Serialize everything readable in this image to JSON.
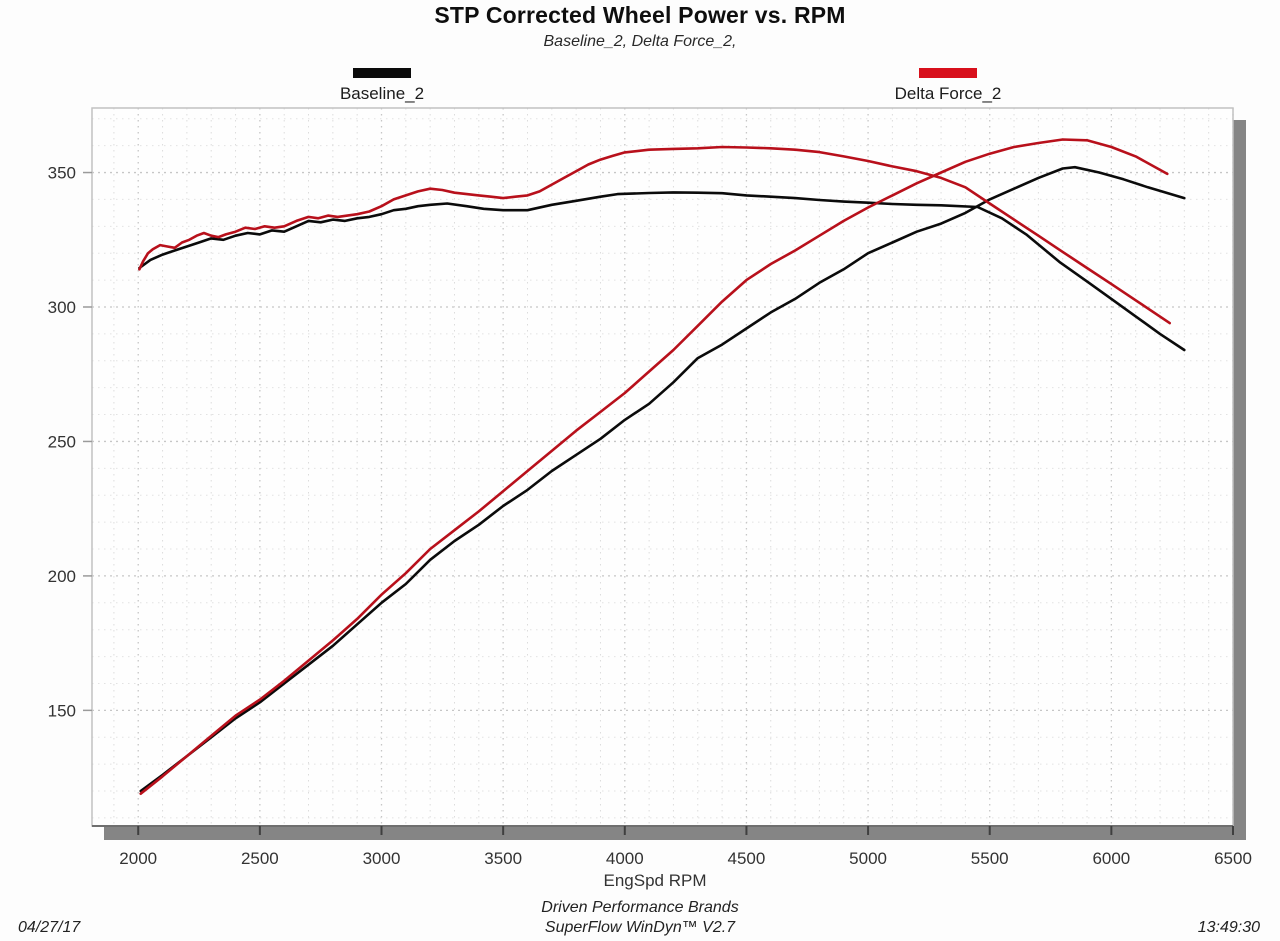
{
  "page": {
    "title": "STP Corrected Wheel Power vs. RPM",
    "subtitle": "Baseline_2, Delta Force_2,"
  },
  "legend": [
    {
      "label": "Baseline_2",
      "color": "#0b0b0b"
    },
    {
      "label": "Delta Force_2",
      "color": "#d8101c"
    }
  ],
  "footer": {
    "date": "04/27/17",
    "time": "13:49:30",
    "brand_line1": "Driven Performance Brands",
    "brand_line2": "SuperFlow WinDyn™ V2.7"
  },
  "chart_data": {
    "type": "line",
    "title": "STP Corrected Wheel Power vs. RPM",
    "subtitle": "Baseline_2, Delta Force_2,",
    "xlabel": "EngSpd RPM",
    "ylabel": "",
    "xlim": [
      1810,
      6500
    ],
    "ylim": [
      107,
      374
    ],
    "x_ticks": [
      2000,
      2500,
      3000,
      3500,
      4000,
      4500,
      5000,
      5500,
      6000,
      6500
    ],
    "y_ticks": [
      150,
      200,
      250,
      300,
      350
    ],
    "x_minor_step": 100,
    "y_minor_step": 10,
    "grid": "dotted",
    "legend_position": "top",
    "series": [
      {
        "name": "Baseline_2",
        "color": "#0b0b0b",
        "power": [
          [
            2010,
            120
          ],
          [
            2100,
            126
          ],
          [
            2200,
            133
          ],
          [
            2300,
            140
          ],
          [
            2400,
            147
          ],
          [
            2500,
            153
          ],
          [
            2600,
            160
          ],
          [
            2700,
            167
          ],
          [
            2800,
            174
          ],
          [
            2900,
            182
          ],
          [
            3000,
            190
          ],
          [
            3100,
            197
          ],
          [
            3200,
            206
          ],
          [
            3300,
            213
          ],
          [
            3400,
            219
          ],
          [
            3500,
            226
          ],
          [
            3600,
            232
          ],
          [
            3700,
            239
          ],
          [
            3800,
            245
          ],
          [
            3900,
            251
          ],
          [
            4000,
            258
          ],
          [
            4100,
            264
          ],
          [
            4200,
            272
          ],
          [
            4300,
            281
          ],
          [
            4400,
            286
          ],
          [
            4500,
            292
          ],
          [
            4600,
            298
          ],
          [
            4700,
            303
          ],
          [
            4800,
            309
          ],
          [
            4900,
            314
          ],
          [
            5000,
            320
          ],
          [
            5100,
            324
          ],
          [
            5200,
            328
          ],
          [
            5300,
            331
          ],
          [
            5400,
            335
          ],
          [
            5500,
            340
          ],
          [
            5600,
            344
          ],
          [
            5700,
            348
          ],
          [
            5800,
            351.5
          ],
          [
            5850,
            352
          ],
          [
            5950,
            350
          ],
          [
            6050,
            347.5
          ],
          [
            6150,
            344.5
          ],
          [
            6300,
            340.5
          ]
        ],
        "torque": [
          [
            2005,
            314.5
          ],
          [
            2050,
            317.5
          ],
          [
            2100,
            319.5
          ],
          [
            2150,
            321
          ],
          [
            2200,
            322.5
          ],
          [
            2250,
            324
          ],
          [
            2300,
            325.5
          ],
          [
            2350,
            325
          ],
          [
            2400,
            326.5
          ],
          [
            2450,
            327.5
          ],
          [
            2500,
            327
          ],
          [
            2550,
            328.5
          ],
          [
            2600,
            328
          ],
          [
            2650,
            330
          ],
          [
            2700,
            332
          ],
          [
            2750,
            331.5
          ],
          [
            2800,
            332.5
          ],
          [
            2850,
            332
          ],
          [
            2900,
            333
          ],
          [
            2950,
            333.5
          ],
          [
            3000,
            334.5
          ],
          [
            3050,
            336
          ],
          [
            3100,
            336.5
          ],
          [
            3150,
            337.5
          ],
          [
            3200,
            338
          ],
          [
            3270,
            338.5
          ],
          [
            3350,
            337.5
          ],
          [
            3420,
            336.5
          ],
          [
            3500,
            336
          ],
          [
            3600,
            336
          ],
          [
            3700,
            338
          ],
          [
            3800,
            339.5
          ],
          [
            3900,
            341
          ],
          [
            3970,
            342
          ],
          [
            4100,
            342.4
          ],
          [
            4200,
            342.6
          ],
          [
            4300,
            342.5
          ],
          [
            4400,
            342.3
          ],
          [
            4500,
            341.5
          ],
          [
            4600,
            341
          ],
          [
            4700,
            340.5
          ],
          [
            4800,
            339.8
          ],
          [
            4900,
            339.2
          ],
          [
            5000,
            338.8
          ],
          [
            5100,
            338.3
          ],
          [
            5200,
            338
          ],
          [
            5300,
            337.8
          ],
          [
            5450,
            337.2
          ],
          [
            5550,
            333
          ],
          [
            5650,
            327
          ],
          [
            5790,
            316.5
          ],
          [
            5900,
            309.5
          ],
          [
            6000,
            303
          ],
          [
            6100,
            296.5
          ],
          [
            6200,
            290
          ],
          [
            6300,
            284
          ]
        ]
      },
      {
        "name": "Delta Force_2",
        "color": "#b8101b",
        "power": [
          [
            2010,
            119
          ],
          [
            2100,
            125.5
          ],
          [
            2200,
            133
          ],
          [
            2300,
            140.5
          ],
          [
            2400,
            148
          ],
          [
            2500,
            154
          ],
          [
            2600,
            161
          ],
          [
            2700,
            168.5
          ],
          [
            2800,
            176
          ],
          [
            2900,
            184
          ],
          [
            3000,
            193
          ],
          [
            3100,
            201
          ],
          [
            3200,
            210
          ],
          [
            3300,
            217
          ],
          [
            3400,
            224
          ],
          [
            3500,
            231.5
          ],
          [
            3600,
            239
          ],
          [
            3700,
            246.5
          ],
          [
            3800,
            254
          ],
          [
            3900,
            261
          ],
          [
            4000,
            268
          ],
          [
            4100,
            276
          ],
          [
            4200,
            284
          ],
          [
            4300,
            293
          ],
          [
            4400,
            302
          ],
          [
            4500,
            310
          ],
          [
            4600,
            316
          ],
          [
            4700,
            321
          ],
          [
            4800,
            326.5
          ],
          [
            4900,
            332
          ],
          [
            5000,
            337
          ],
          [
            5100,
            341.5
          ],
          [
            5200,
            346
          ],
          [
            5300,
            350
          ],
          [
            5400,
            354
          ],
          [
            5500,
            357
          ],
          [
            5600,
            359.5
          ],
          [
            5700,
            361
          ],
          [
            5800,
            362.3
          ],
          [
            5900,
            362
          ],
          [
            6000,
            359.5
          ],
          [
            6100,
            356
          ],
          [
            6230,
            349.5
          ]
        ],
        "torque": [
          [
            2005,
            314
          ],
          [
            2020,
            317
          ],
          [
            2040,
            320
          ],
          [
            2060,
            321.5
          ],
          [
            2090,
            323
          ],
          [
            2120,
            322.5
          ],
          [
            2150,
            322
          ],
          [
            2180,
            324
          ],
          [
            2210,
            325
          ],
          [
            2240,
            326.5
          ],
          [
            2270,
            327.5
          ],
          [
            2300,
            326.5
          ],
          [
            2330,
            326
          ],
          [
            2360,
            327
          ],
          [
            2400,
            328
          ],
          [
            2440,
            329.5
          ],
          [
            2480,
            329
          ],
          [
            2520,
            330
          ],
          [
            2560,
            329.5
          ],
          [
            2600,
            330
          ],
          [
            2650,
            332
          ],
          [
            2700,
            333.5
          ],
          [
            2740,
            333
          ],
          [
            2780,
            334
          ],
          [
            2820,
            333.5
          ],
          [
            2860,
            334
          ],
          [
            2900,
            334.5
          ],
          [
            2950,
            335.5
          ],
          [
            3000,
            337.5
          ],
          [
            3050,
            340
          ],
          [
            3100,
            341.5
          ],
          [
            3150,
            343
          ],
          [
            3200,
            344
          ],
          [
            3250,
            343.5
          ],
          [
            3300,
            342.5
          ],
          [
            3350,
            342
          ],
          [
            3400,
            341.5
          ],
          [
            3450,
            341
          ],
          [
            3500,
            340.5
          ],
          [
            3550,
            341
          ],
          [
            3600,
            341.5
          ],
          [
            3650,
            343
          ],
          [
            3700,
            345.5
          ],
          [
            3750,
            348
          ],
          [
            3800,
            350.5
          ],
          [
            3850,
            353
          ],
          [
            3900,
            354.8
          ],
          [
            3950,
            356.2
          ],
          [
            4000,
            357.5
          ],
          [
            4100,
            358.5
          ],
          [
            4200,
            358.8
          ],
          [
            4300,
            359
          ],
          [
            4400,
            359.5
          ],
          [
            4500,
            359.3
          ],
          [
            4600,
            359
          ],
          [
            4700,
            358.5
          ],
          [
            4800,
            357.6
          ],
          [
            4900,
            356
          ],
          [
            5000,
            354.3
          ],
          [
            5100,
            352.3
          ],
          [
            5200,
            350.5
          ],
          [
            5300,
            348
          ],
          [
            5400,
            344.5
          ],
          [
            5500,
            338.5
          ],
          [
            5600,
            332.5
          ],
          [
            5700,
            326.5
          ],
          [
            5800,
            320.5
          ],
          [
            5900,
            314.5
          ],
          [
            6000,
            308.5
          ],
          [
            6100,
            302.5
          ],
          [
            6240,
            294
          ]
        ]
      }
    ]
  }
}
